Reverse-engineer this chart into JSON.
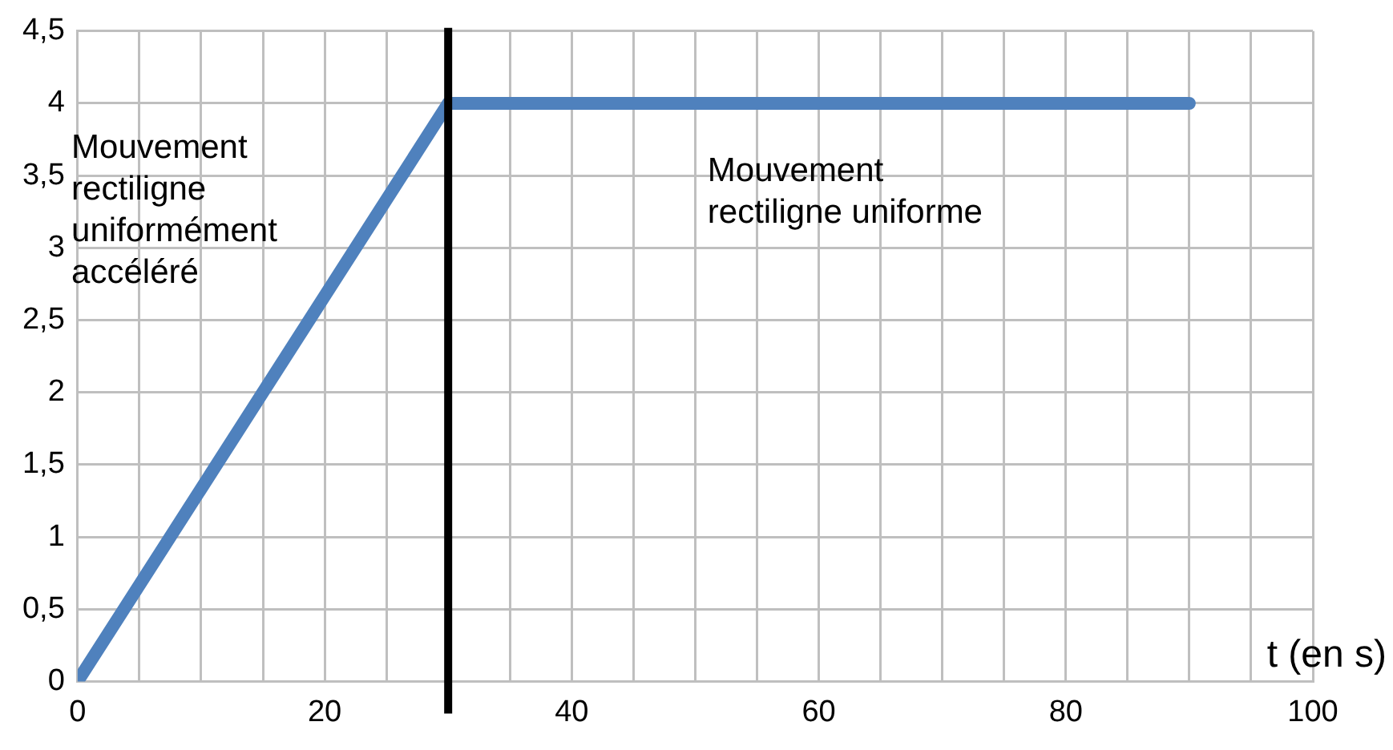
{
  "chart_data": {
    "type": "line",
    "xlabel": "t (en s)",
    "x": [
      0,
      30,
      90
    ],
    "series": [
      {
        "color": "#4f81bd",
        "values": [
          0,
          4,
          4
        ]
      }
    ],
    "xlim": [
      0,
      100
    ],
    "xticks": [
      0,
      {
        "value": 5,
        "label": null
      },
      {
        "value": 10,
        "label": null
      },
      {
        "value": 15,
        "label": null
      },
      20,
      {
        "value": 25,
        "label": null
      },
      {
        "value": 30,
        "label": null
      },
      {
        "value": 35,
        "label": null
      },
      40,
      {
        "value": 45,
        "label": null
      },
      {
        "value": 50,
        "label": null
      },
      {
        "value": 55,
        "label": null
      },
      60,
      {
        "value": 65,
        "label": null
      },
      {
        "value": 70,
        "label": null
      },
      {
        "value": 75,
        "label": null
      },
      80,
      {
        "value": 85,
        "label": null
      },
      {
        "value": 90,
        "label": null
      },
      {
        "value": 95,
        "label": null
      },
      100
    ],
    "ylim": [
      0,
      4.5
    ],
    "yticks": [
      0,
      {
        "value": 0.5,
        "label": "0,5"
      },
      1,
      {
        "value": 1.5,
        "label": "1,5"
      },
      2,
      {
        "value": 2.5,
        "label": "2,5"
      },
      3,
      {
        "value": 3.5,
        "label": "3,5"
      },
      4,
      {
        "value": 4.5,
        "label": "4,5"
      }
    ],
    "grid": true,
    "legend": false,
    "marker": "none",
    "line_style": "solid",
    "ref_lines": [
      {
        "axis": "x",
        "value": 30,
        "color": "#000000"
      }
    ],
    "annotations": [
      "Mouvement\nrectiligne\nuniformément\naccéléré",
      "Mouvement\nrectiligne uniforme"
    ]
  }
}
